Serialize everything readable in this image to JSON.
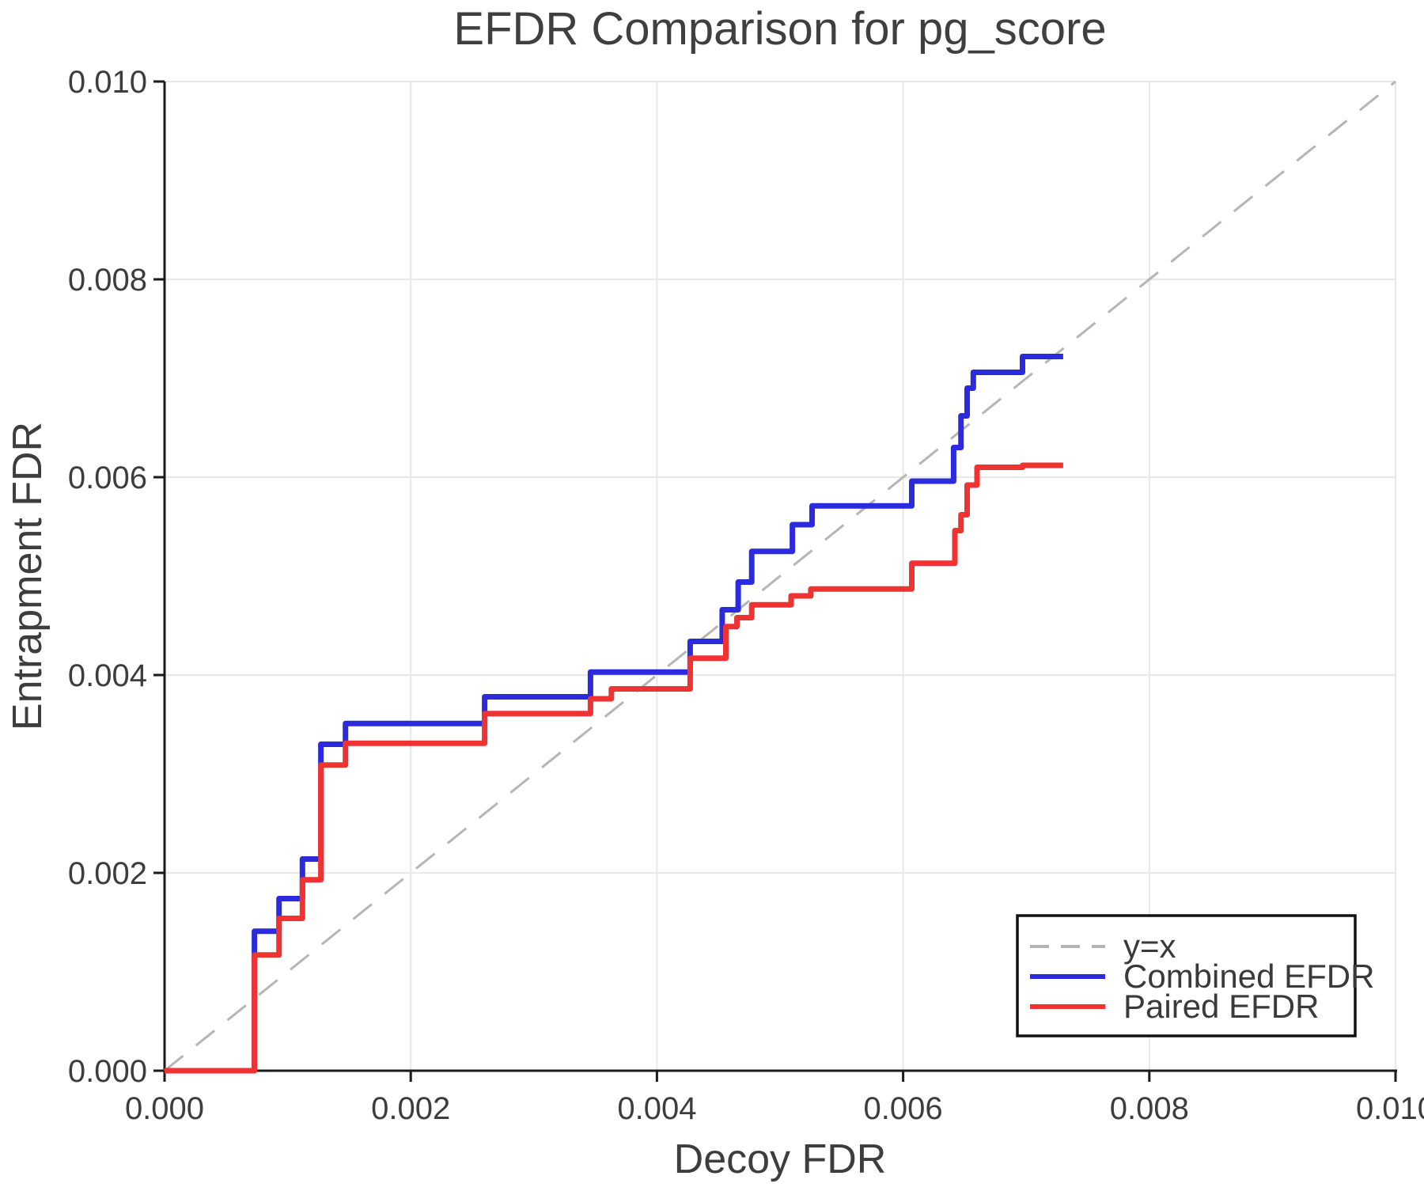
{
  "title": "EFDR Comparison for pg_score",
  "xlabel": "Decoy FDR",
  "ylabel": "Entrapment FDR",
  "colors": {
    "combined": "#2b2bdd",
    "paired": "#ef3232",
    "identity": "#b5b5b5",
    "grid": "#e8e8e8",
    "axis": "#1a1a1a",
    "text": "#3d3d3d"
  },
  "legend": {
    "items": [
      {
        "label": "y=x",
        "color": "#b5b5b5",
        "dashed": true
      },
      {
        "label": "Combined EFDR",
        "color": "#2b2bdd",
        "dashed": false
      },
      {
        "label": "Paired EFDR",
        "color": "#ef3232",
        "dashed": false
      }
    ]
  },
  "chart_data": {
    "type": "line",
    "title": "EFDR Comparison for pg_score",
    "xlabel": "Decoy FDR",
    "ylabel": "Entrapment FDR",
    "xlim": [
      0.0,
      0.01
    ],
    "ylim": [
      0.0,
      0.01
    ],
    "grid": true,
    "legend_position": "lower right",
    "xticks": [
      0.0,
      0.002,
      0.004,
      0.006,
      0.008,
      0.01
    ],
    "yticks": [
      0.0,
      0.002,
      0.004,
      0.006,
      0.008,
      0.01
    ],
    "xtick_labels": [
      "0.000",
      "0.002",
      "0.004",
      "0.006",
      "0.008",
      "0.010"
    ],
    "ytick_labels": [
      "0.000",
      "0.002",
      "0.004",
      "0.006",
      "0.008",
      "0.010"
    ],
    "reference_line": {
      "name": "y=x",
      "from": [
        0.0,
        0.0
      ],
      "to": [
        0.01,
        0.01
      ],
      "style": "dashed"
    },
    "series": [
      {
        "name": "Combined EFDR",
        "color": "#2b2bdd",
        "step": "post",
        "x": [
          0.0,
          0.00073,
          0.00093,
          0.00112,
          0.00127,
          0.00147,
          0.0026,
          0.00346,
          0.00427,
          0.00453,
          0.00466,
          0.00477,
          0.0051,
          0.00526,
          0.00607,
          0.00641,
          0.00647,
          0.00652,
          0.00657,
          0.00697,
          0.0073
        ],
        "y": [
          0.0,
          0.00141,
          0.00174,
          0.00214,
          0.0033,
          0.00351,
          0.00378,
          0.00403,
          0.00434,
          0.00466,
          0.00494,
          0.00525,
          0.00552,
          0.00571,
          0.00596,
          0.0063,
          0.00662,
          0.0069,
          0.00706,
          0.00722,
          0.00722
        ]
      },
      {
        "name": "Paired EFDR",
        "color": "#ef3232",
        "step": "post",
        "x": [
          0.0,
          0.00073,
          0.00093,
          0.00112,
          0.00127,
          0.00147,
          0.0026,
          0.00346,
          0.00363,
          0.00427,
          0.00456,
          0.00465,
          0.00477,
          0.00509,
          0.00525,
          0.00607,
          0.00642,
          0.00647,
          0.00652,
          0.0066,
          0.00697,
          0.0073
        ],
        "y": [
          0.0,
          0.00117,
          0.00154,
          0.00193,
          0.00309,
          0.00331,
          0.00361,
          0.00376,
          0.00386,
          0.00417,
          0.00449,
          0.00458,
          0.00471,
          0.0048,
          0.00487,
          0.00513,
          0.00546,
          0.00562,
          0.00592,
          0.0061,
          0.00612,
          0.00612
        ]
      }
    ]
  }
}
